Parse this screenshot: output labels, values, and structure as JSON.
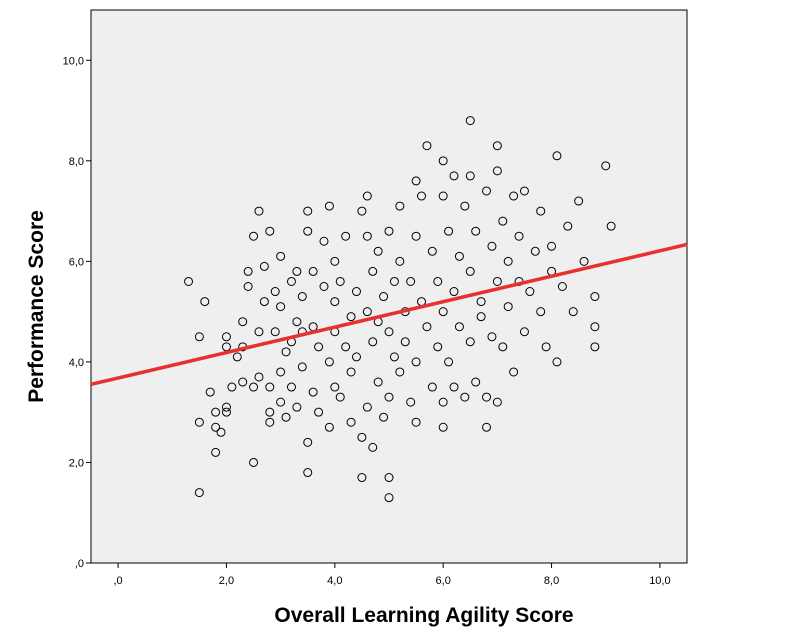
{
  "chart_data": {
    "type": "scatter",
    "title": "",
    "xlabel": "Overall Learning Agility Score",
    "ylabel": "Performance Score",
    "xlim": [
      -0.5,
      10.5
    ],
    "ylim": [
      0,
      11
    ],
    "x_ticks": [
      0,
      2,
      4,
      6,
      8,
      10
    ],
    "x_tick_labels": [
      ",0",
      "2,0",
      "4,0",
      "6,0",
      "8,0",
      "10,0"
    ],
    "y_ticks": [
      0,
      2,
      4,
      6,
      8,
      10
    ],
    "y_tick_labels": [
      ",0",
      "2,0",
      "4,0",
      "6,0",
      "8,0",
      "10,0"
    ],
    "grid": false,
    "background_color": "#efefef",
    "marker_color": "#000000",
    "fit_line": {
      "color": "#e8302f",
      "slope": 0.253,
      "intercept": 3.68
    },
    "points": [
      [
        1.3,
        5.6
      ],
      [
        1.5,
        4.5
      ],
      [
        1.5,
        2.8
      ],
      [
        1.5,
        1.4
      ],
      [
        1.6,
        5.2
      ],
      [
        1.7,
        3.4
      ],
      [
        1.8,
        2.7
      ],
      [
        1.8,
        2.2
      ],
      [
        1.8,
        3.0
      ],
      [
        1.9,
        2.6
      ],
      [
        2.0,
        4.5
      ],
      [
        2.0,
        4.3
      ],
      [
        2.0,
        3.0
      ],
      [
        2.0,
        3.1
      ],
      [
        2.1,
        3.5
      ],
      [
        2.2,
        4.1
      ],
      [
        2.3,
        3.6
      ],
      [
        2.3,
        4.3
      ],
      [
        2.3,
        4.8
      ],
      [
        2.4,
        5.5
      ],
      [
        2.4,
        5.8
      ],
      [
        2.5,
        6.5
      ],
      [
        2.5,
        3.5
      ],
      [
        2.5,
        2.0
      ],
      [
        2.6,
        7.0
      ],
      [
        2.6,
        3.7
      ],
      [
        2.6,
        4.6
      ],
      [
        2.7,
        5.2
      ],
      [
        2.7,
        5.9
      ],
      [
        2.8,
        6.6
      ],
      [
        2.8,
        3.5
      ],
      [
        2.8,
        2.8
      ],
      [
        2.8,
        3.0
      ],
      [
        2.9,
        4.6
      ],
      [
        2.9,
        5.4
      ],
      [
        3.0,
        5.1
      ],
      [
        3.0,
        3.8
      ],
      [
        3.0,
        3.2
      ],
      [
        3.0,
        6.1
      ],
      [
        3.1,
        4.2
      ],
      [
        3.1,
        2.9
      ],
      [
        3.2,
        4.4
      ],
      [
        3.2,
        5.6
      ],
      [
        3.2,
        3.5
      ],
      [
        3.3,
        4.8
      ],
      [
        3.3,
        5.8
      ],
      [
        3.3,
        3.1
      ],
      [
        3.4,
        3.9
      ],
      [
        3.4,
        4.6
      ],
      [
        3.4,
        5.3
      ],
      [
        3.5,
        6.6
      ],
      [
        3.5,
        7.0
      ],
      [
        3.5,
        2.4
      ],
      [
        3.5,
        1.8
      ],
      [
        3.6,
        4.7
      ],
      [
        3.6,
        3.4
      ],
      [
        3.6,
        5.8
      ],
      [
        3.7,
        4.3
      ],
      [
        3.7,
        3.0
      ],
      [
        3.8,
        5.5
      ],
      [
        3.8,
        6.4
      ],
      [
        3.9,
        7.1
      ],
      [
        3.9,
        4.0
      ],
      [
        3.9,
        2.7
      ],
      [
        4.0,
        4.6
      ],
      [
        4.0,
        5.2
      ],
      [
        4.0,
        3.5
      ],
      [
        4.0,
        6.0
      ],
      [
        4.1,
        3.3
      ],
      [
        4.1,
        5.6
      ],
      [
        4.2,
        4.3
      ],
      [
        4.2,
        6.5
      ],
      [
        4.3,
        4.9
      ],
      [
        4.3,
        3.8
      ],
      [
        4.3,
        2.8
      ],
      [
        4.4,
        5.4
      ],
      [
        4.4,
        4.1
      ],
      [
        4.5,
        7.0
      ],
      [
        4.5,
        2.5
      ],
      [
        4.5,
        1.7
      ],
      [
        4.6,
        7.3
      ],
      [
        4.6,
        6.5
      ],
      [
        4.6,
        3.1
      ],
      [
        4.6,
        5.0
      ],
      [
        4.7,
        4.4
      ],
      [
        4.7,
        5.8
      ],
      [
        4.7,
        2.3
      ],
      [
        4.8,
        3.6
      ],
      [
        4.8,
        4.8
      ],
      [
        4.8,
        6.2
      ],
      [
        4.9,
        5.3
      ],
      [
        4.9,
        2.9
      ],
      [
        5.0,
        4.6
      ],
      [
        5.0,
        6.6
      ],
      [
        5.0,
        3.3
      ],
      [
        5.0,
        1.7
      ],
      [
        5.0,
        1.3
      ],
      [
        5.1,
        5.6
      ],
      [
        5.1,
        4.1
      ],
      [
        5.2,
        7.1
      ],
      [
        5.2,
        3.8
      ],
      [
        5.2,
        6.0
      ],
      [
        5.3,
        5.0
      ],
      [
        5.3,
        4.4
      ],
      [
        5.4,
        5.6
      ],
      [
        5.4,
        3.2
      ],
      [
        5.5,
        7.6
      ],
      [
        5.5,
        6.5
      ],
      [
        5.5,
        4.0
      ],
      [
        5.5,
        2.8
      ],
      [
        5.6,
        5.2
      ],
      [
        5.6,
        7.3
      ],
      [
        5.7,
        8.3
      ],
      [
        5.7,
        4.7
      ],
      [
        5.8,
        6.2
      ],
      [
        5.8,
        3.5
      ],
      [
        5.9,
        5.6
      ],
      [
        5.9,
        4.3
      ],
      [
        6.0,
        7.3
      ],
      [
        6.0,
        8.0
      ],
      [
        6.0,
        5.0
      ],
      [
        6.0,
        2.7
      ],
      [
        6.0,
        3.2
      ],
      [
        6.1,
        6.6
      ],
      [
        6.1,
        4.0
      ],
      [
        6.2,
        7.7
      ],
      [
        6.2,
        5.4
      ],
      [
        6.2,
        3.5
      ],
      [
        6.3,
        6.1
      ],
      [
        6.3,
        4.7
      ],
      [
        6.4,
        7.1
      ],
      [
        6.4,
        3.3
      ],
      [
        6.5,
        8.8
      ],
      [
        6.5,
        5.8
      ],
      [
        6.5,
        4.4
      ],
      [
        6.5,
        7.7
      ],
      [
        6.6,
        6.6
      ],
      [
        6.6,
        3.6
      ],
      [
        6.7,
        5.2
      ],
      [
        6.7,
        4.9
      ],
      [
        6.8,
        7.4
      ],
      [
        6.8,
        2.7
      ],
      [
        6.8,
        3.3
      ],
      [
        6.9,
        6.3
      ],
      [
        6.9,
        4.5
      ],
      [
        7.0,
        8.3
      ],
      [
        7.0,
        7.8
      ],
      [
        7.0,
        5.6
      ],
      [
        7.0,
        3.2
      ],
      [
        7.1,
        6.8
      ],
      [
        7.1,
        4.3
      ],
      [
        7.2,
        6.0
      ],
      [
        7.2,
        5.1
      ],
      [
        7.3,
        7.3
      ],
      [
        7.3,
        3.8
      ],
      [
        7.4,
        5.6
      ],
      [
        7.4,
        6.5
      ],
      [
        7.5,
        7.4
      ],
      [
        7.5,
        4.6
      ],
      [
        7.6,
        5.4
      ],
      [
        7.7,
        6.2
      ],
      [
        7.8,
        5.0
      ],
      [
        7.8,
        7.0
      ],
      [
        7.9,
        4.3
      ],
      [
        8.0,
        5.8
      ],
      [
        8.0,
        6.3
      ],
      [
        8.1,
        4.0
      ],
      [
        8.1,
        8.1
      ],
      [
        8.2,
        5.5
      ],
      [
        8.3,
        6.7
      ],
      [
        8.4,
        5.0
      ],
      [
        8.5,
        7.2
      ],
      [
        8.6,
        6.0
      ],
      [
        8.8,
        5.3
      ],
      [
        8.8,
        4.7
      ],
      [
        8.8,
        4.3
      ],
      [
        9.0,
        7.9
      ],
      [
        9.1,
        6.7
      ]
    ]
  }
}
